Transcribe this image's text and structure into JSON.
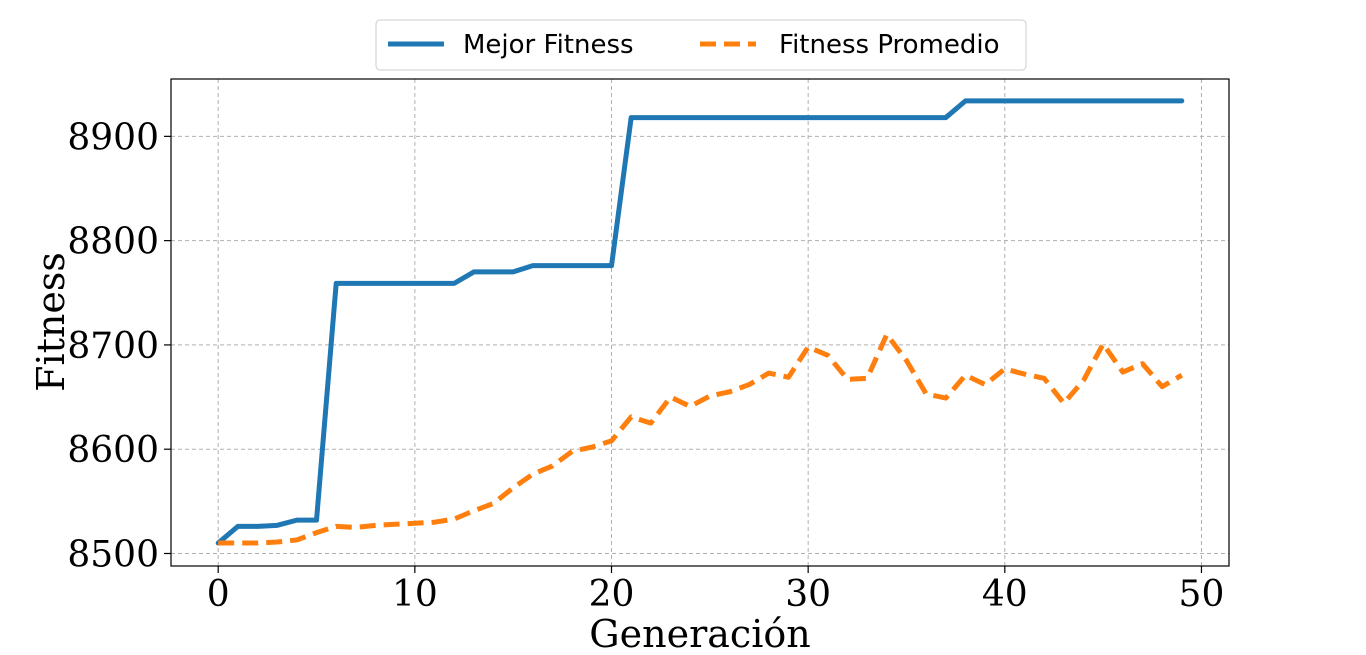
{
  "chart_data": {
    "type": "line",
    "xlabel": "Generación",
    "ylabel": "Fitness",
    "xlim": [
      -2.4,
      51.4
    ],
    "ylim": [
      8488,
      8955
    ],
    "xticks": [
      0,
      10,
      20,
      30,
      40,
      50
    ],
    "yticks": [
      8500,
      8600,
      8700,
      8800,
      8900
    ],
    "grid": true,
    "legend_position": "top-center",
    "x": [
      0,
      1,
      2,
      3,
      4,
      5,
      6,
      7,
      8,
      9,
      10,
      11,
      12,
      13,
      14,
      15,
      16,
      17,
      18,
      19,
      20,
      21,
      22,
      23,
      24,
      25,
      26,
      27,
      28,
      29,
      30,
      31,
      32,
      33,
      34,
      35,
      36,
      37,
      38,
      39,
      40,
      41,
      42,
      43,
      44,
      45,
      46,
      47,
      48,
      49
    ],
    "series": [
      {
        "name": "Mejor Fitness",
        "color": "#1f77b4",
        "style": "solid",
        "values": [
          8510,
          8526,
          8526,
          8527,
          8532,
          8532,
          8759,
          8759,
          8759,
          8759,
          8759,
          8759,
          8759,
          8770,
          8770,
          8770,
          8776,
          8776,
          8776,
          8776,
          8776,
          8918,
          8918,
          8918,
          8918,
          8918,
          8918,
          8918,
          8918,
          8918,
          8918,
          8918,
          8918,
          8918,
          8918,
          8918,
          8918,
          8918,
          8934,
          8934,
          8934,
          8934,
          8934,
          8934,
          8934,
          8934,
          8934,
          8934,
          8934,
          8934
        ]
      },
      {
        "name": "Fitness Promedio",
        "color": "#ff7f0e",
        "style": "dashed",
        "values": [
          8510,
          8510,
          8510,
          8511,
          8513,
          8520,
          8526,
          8525,
          8527,
          8528,
          8529,
          8530,
          8533,
          8541,
          8548,
          8563,
          8576,
          8584,
          8598,
          8602,
          8608,
          8631,
          8625,
          8650,
          8641,
          8651,
          8655,
          8662,
          8673,
          8669,
          8698,
          8690,
          8667,
          8668,
          8710,
          8685,
          8653,
          8649,
          8671,
          8662,
          8677,
          8672,
          8668,
          8644,
          8666,
          8701,
          8674,
          8682,
          8660,
          8671
        ]
      }
    ]
  }
}
